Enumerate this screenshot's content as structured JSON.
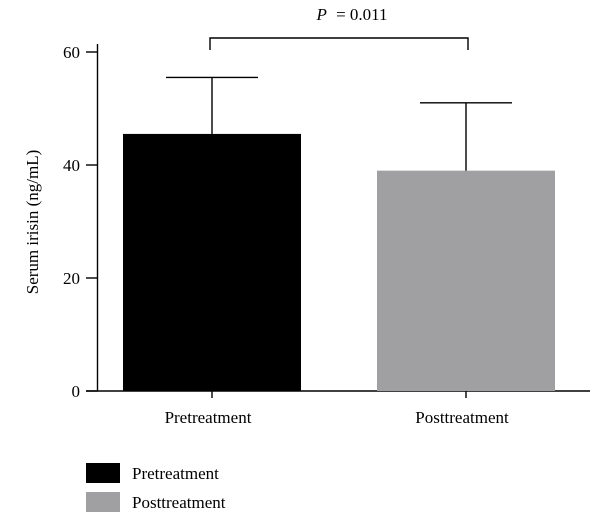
{
  "chart_data": {
    "type": "bar",
    "categories": [
      "Pretreatment",
      "Posttreatment"
    ],
    "values": [
      45.5,
      39.0
    ],
    "error_upper": [
      55.5,
      51.0
    ],
    "colors": [
      "#000000",
      "#a0a0a2"
    ],
    "title": "",
    "xlabel": "",
    "ylabel": "Serum irisin (ng/mL)",
    "ylim": [
      0,
      60
    ],
    "yticks": [
      0,
      20,
      40,
      60
    ],
    "grid": false,
    "legend": {
      "position": "bottom-left",
      "entries": [
        {
          "label": "Pretreatment",
          "color": "#000000"
        },
        {
          "label": "Posttreatment",
          "color": "#a0a0a2"
        }
      ]
    },
    "annotation": {
      "p_symbol": "P",
      "p_value_text": "= 0.011"
    }
  }
}
